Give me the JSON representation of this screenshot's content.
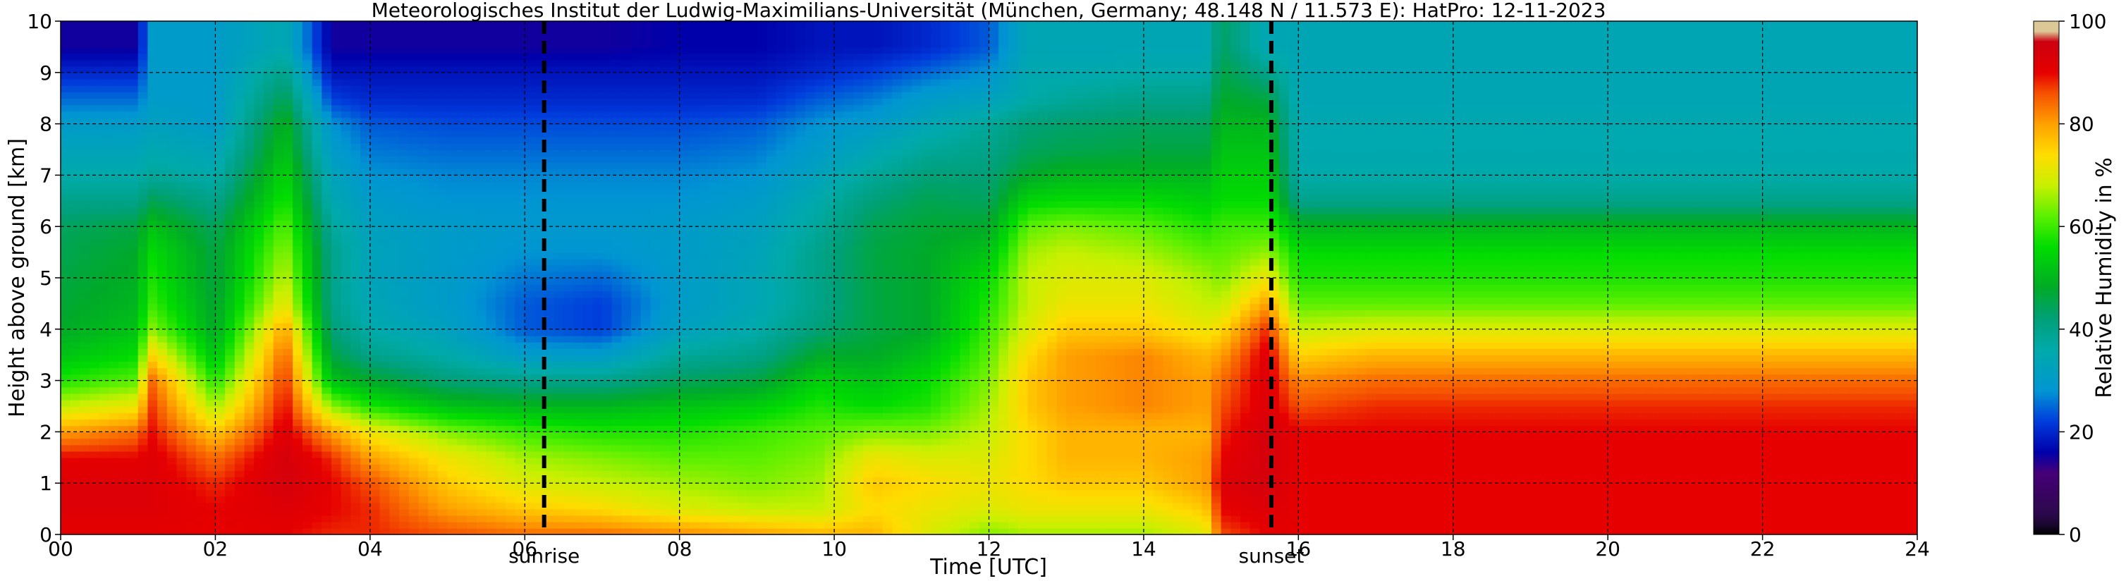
{
  "chart_data": {
    "type": "heatmap",
    "title": "Meteorologisches Institut der Ludwig-Maximilians-Universität (München, Germany; 48.148 N / 11.573 E):    HatPro: 12-11-2023",
    "xlabel": "Time [UTC]",
    "ylabel": "Height above ground [km]",
    "xlim": [
      0,
      24
    ],
    "ylim": [
      0,
      10
    ],
    "x_ticks": [
      "00",
      "02",
      "04",
      "06",
      "08",
      "10",
      "12",
      "14",
      "16",
      "18",
      "20",
      "22",
      "24"
    ],
    "y_ticks": [
      "0",
      "1",
      "2",
      "3",
      "4",
      "5",
      "6",
      "7",
      "8",
      "9",
      "10"
    ],
    "grid": true,
    "colorbar": {
      "label": "Relative Humidity in %",
      "range": [
        0,
        100
      ],
      "ticks": [
        "0",
        "20",
        "40",
        "60",
        "80",
        "100"
      ]
    },
    "markers": [
      {
        "label": "sunrise",
        "x": 6.25
      },
      {
        "label": "sunset",
        "x": 15.65
      }
    ],
    "time_points": [
      0,
      1,
      1.15,
      2,
      2.9,
      3.5,
      4,
      5,
      6,
      7,
      8,
      9,
      9.8,
      10.5,
      11.2,
      12,
      12.5,
      13,
      14,
      14.8,
      15.0,
      15.6,
      16,
      17,
      20,
      24
    ],
    "heights": [
      0,
      0.5,
      1,
      1.5,
      2,
      2.5,
      3,
      3.5,
      4,
      4.5,
      5,
      5.5,
      6,
      6.5,
      7,
      7.5,
      8,
      8.5,
      9,
      9.5,
      10
    ],
    "rh_profiles": [
      [
        90,
        92,
        92,
        90,
        80,
        68,
        58,
        52,
        48,
        47,
        46,
        45,
        44,
        40,
        36,
        33,
        30,
        25,
        20,
        15,
        15
      ],
      [
        90,
        92,
        92,
        90,
        84,
        72,
        62,
        56,
        52,
        50,
        49,
        48,
        46,
        40,
        36,
        33,
        30,
        25,
        20,
        15,
        15
      ],
      [
        90,
        92,
        92,
        92,
        90,
        88,
        85,
        75,
        65,
        60,
        58,
        56,
        52,
        45,
        38,
        35,
        32,
        30,
        30,
        30,
        30
      ],
      [
        90,
        90,
        88,
        84,
        76,
        66,
        58,
        52,
        48,
        47,
        46,
        46,
        44,
        40,
        36,
        33,
        30,
        30,
        30,
        30,
        30
      ],
      [
        90,
        92,
        94,
        94,
        92,
        90,
        88,
        85,
        80,
        72,
        68,
        65,
        62,
        58,
        55,
        52,
        50,
        45,
        40,
        35,
        35
      ],
      [
        88,
        90,
        90,
        88,
        80,
        65,
        52,
        46,
        42,
        40,
        40,
        40,
        38,
        35,
        33,
        30,
        28,
        22,
        18,
        15,
        15
      ],
      [
        88,
        88,
        86,
        80,
        72,
        58,
        48,
        40,
        36,
        34,
        33,
        33,
        32,
        30,
        28,
        26,
        24,
        20,
        18,
        15,
        15
      ],
      [
        86,
        80,
        76,
        72,
        64,
        52,
        42,
        36,
        32,
        30,
        30,
        30,
        30,
        28,
        27,
        25,
        23,
        20,
        18,
        15,
        15
      ],
      [
        84,
        76,
        70,
        66,
        60,
        50,
        40,
        30,
        24,
        24,
        26,
        28,
        29,
        28,
        27,
        25,
        23,
        20,
        18,
        15,
        15
      ],
      [
        84,
        74,
        68,
        64,
        58,
        50,
        40,
        30,
        22,
        22,
        25,
        28,
        29,
        28,
        27,
        25,
        23,
        20,
        18,
        15,
        15
      ],
      [
        82,
        70,
        66,
        62,
        58,
        52,
        44,
        38,
        32,
        30,
        30,
        30,
        30,
        28,
        27,
        25,
        23,
        20,
        18,
        16,
        16
      ],
      [
        80,
        68,
        64,
        62,
        60,
        54,
        46,
        40,
        36,
        34,
        34,
        33,
        32,
        30,
        28,
        26,
        24,
        20,
        18,
        16,
        16
      ],
      [
        78,
        68,
        66,
        64,
        62,
        58,
        54,
        48,
        42,
        40,
        40,
        40,
        38,
        36,
        33,
        30,
        28,
        24,
        20,
        18,
        18
      ],
      [
        78,
        74,
        76,
        72,
        64,
        56,
        52,
        48,
        46,
        46,
        46,
        46,
        45,
        42,
        38,
        34,
        30,
        26,
        22,
        18,
        18
      ],
      [
        70,
        72,
        74,
        70,
        64,
        58,
        56,
        52,
        48,
        48,
        48,
        48,
        47,
        45,
        42,
        38,
        34,
        30,
        25,
        20,
        20
      ],
      [
        64,
        70,
        72,
        70,
        68,
        66,
        64,
        62,
        60,
        58,
        56,
        52,
        48,
        44,
        42,
        40,
        38,
        32,
        28,
        24,
        24
      ],
      [
        66,
        72,
        74,
        74,
        74,
        76,
        76,
        74,
        70,
        68,
        68,
        66,
        62,
        55,
        48,
        44,
        42,
        36,
        35,
        34,
        34
      ],
      [
        66,
        72,
        76,
        78,
        78,
        80,
        80,
        80,
        76,
        72,
        70,
        68,
        64,
        56,
        50,
        45,
        43,
        38,
        35,
        34,
        34
      ],
      [
        66,
        72,
        76,
        78,
        78,
        82,
        82,
        82,
        76,
        72,
        70,
        66,
        62,
        56,
        50,
        46,
        44,
        40,
        36,
        34,
        34
      ],
      [
        70,
        76,
        80,
        80,
        78,
        80,
        80,
        78,
        72,
        68,
        66,
        62,
        58,
        54,
        50,
        46,
        44,
        40,
        36,
        34,
        34
      ],
      [
        86,
        90,
        92,
        90,
        88,
        86,
        84,
        80,
        74,
        68,
        64,
        62,
        60,
        56,
        54,
        52,
        50,
        48,
        46,
        44,
        44
      ],
      [
        90,
        92,
        94,
        94,
        94,
        92,
        92,
        92,
        88,
        80,
        72,
        65,
        60,
        56,
        54,
        52,
        50,
        46,
        40,
        34,
        34
      ],
      [
        90,
        90,
        90,
        90,
        90,
        86,
        82,
        75,
        68,
        62,
        58,
        56,
        50,
        40,
        36,
        35,
        35,
        34,
        34,
        34,
        34
      ],
      [
        90,
        90,
        90,
        90,
        90,
        88,
        84,
        78,
        70,
        62,
        58,
        56,
        50,
        40,
        36,
        35,
        35,
        34,
        34,
        34,
        34
      ],
      [
        90,
        90,
        90,
        90,
        90,
        88,
        84,
        78,
        70,
        62,
        58,
        56,
        50,
        40,
        36,
        35,
        35,
        34,
        34,
        34,
        34
      ],
      [
        90,
        90,
        90,
        90,
        90,
        88,
        84,
        78,
        70,
        62,
        58,
        56,
        50,
        40,
        36,
        35,
        35,
        34,
        34,
        34,
        34
      ]
    ]
  }
}
